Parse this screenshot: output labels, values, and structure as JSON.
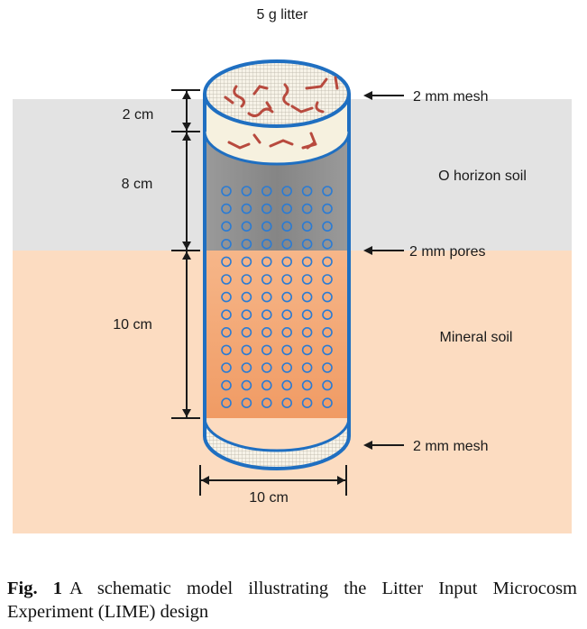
{
  "labels": {
    "litter": "5 g litter",
    "mesh_top": "2 mm mesh",
    "mesh_bottom": "2 mm mesh",
    "pores": "2 mm pores",
    "o_horizon": "O horizon soil",
    "mineral": "Mineral soil",
    "dim_2cm": "2 cm",
    "dim_8cm": "8 cm",
    "dim_10cm_depth": "10 cm",
    "dim_10cm_width": "10 cm"
  },
  "caption": {
    "fig_label": "Fig. 1",
    "text": "A schematic model illustrating the Litter Input Microcosm Experiment (LIME) design"
  },
  "colors": {
    "o_horizon_band": "#e3e3e3",
    "mineral_band": "#fcdcc1",
    "cylinder_outline": "#1f6fc1",
    "pore_dots": "#2a7bd4",
    "litter_pieces": "#b84a3e",
    "cylinder_o_horizon_fill": "#8e8e8e",
    "cylinder_mineral_fill": "#f2a774"
  },
  "pore_grid": {
    "rows": 13,
    "columns": 6
  }
}
